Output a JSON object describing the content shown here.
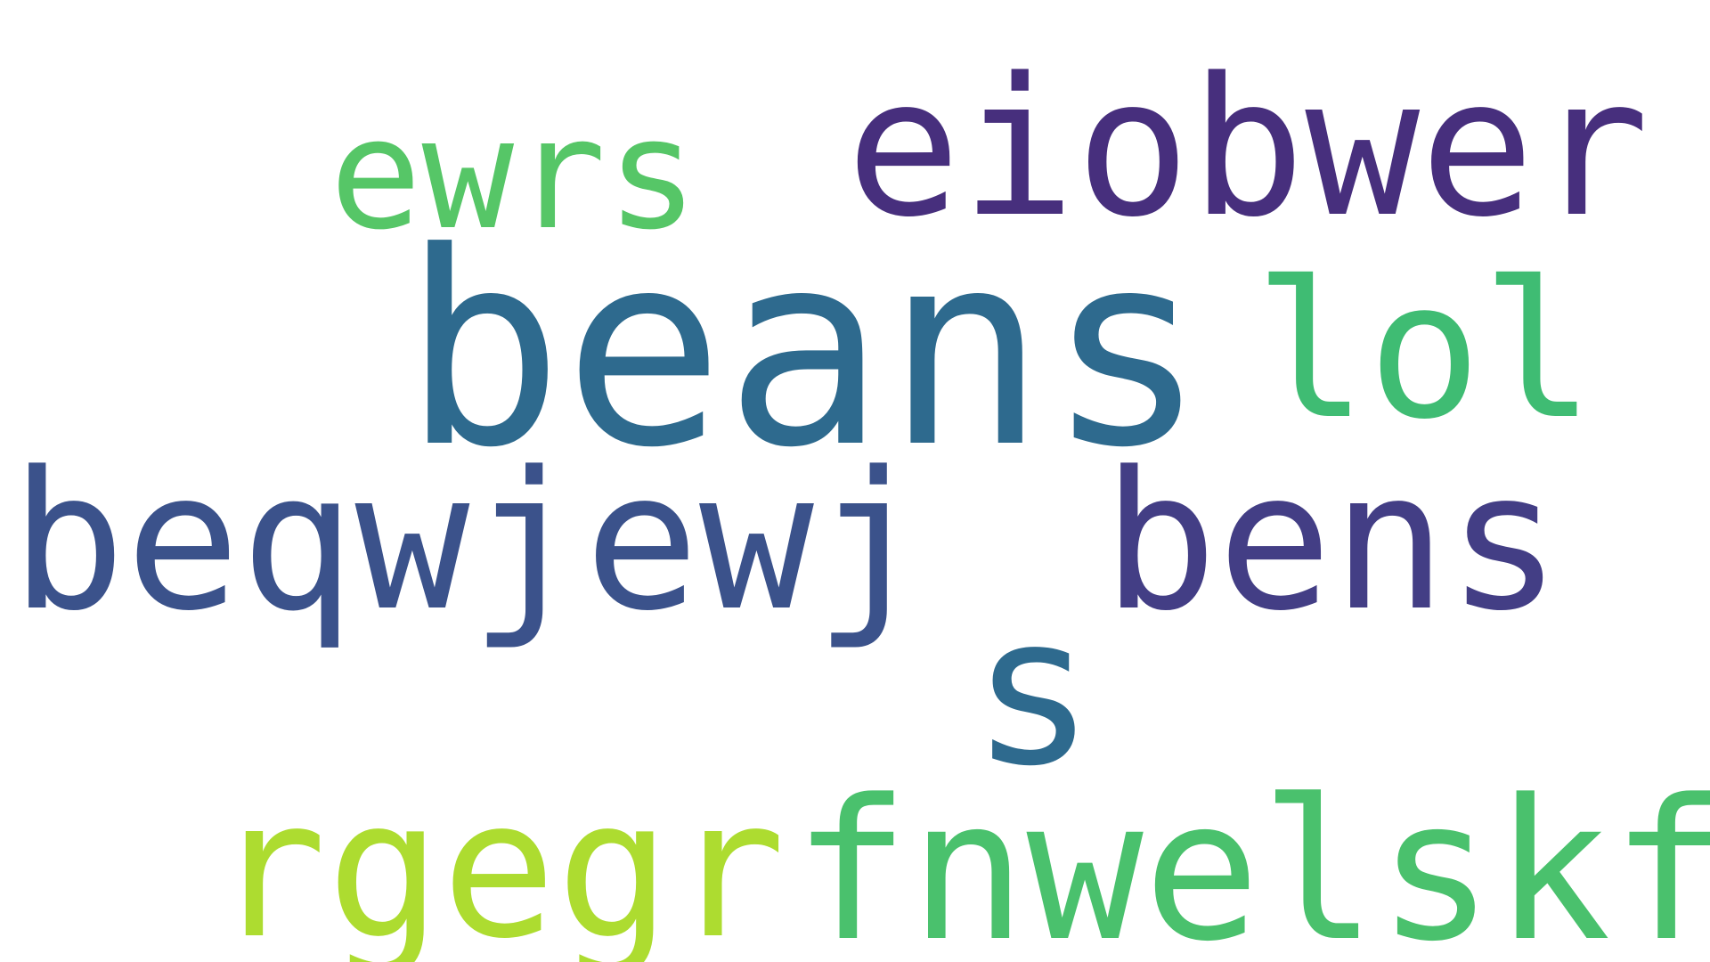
{
  "words": [
    {
      "text": "beans",
      "color": "#2e6a8e"
    },
    {
      "text": "lol",
      "color": "#3fbc73"
    },
    {
      "text": "eiobwer",
      "color": "#472f7d"
    },
    {
      "text": "ewrs",
      "color": "#56c667"
    },
    {
      "text": "beqwjewj",
      "color": "#3b528b"
    },
    {
      "text": "bens",
      "color": "#433e85"
    },
    {
      "text": "s",
      "color": "#2e6a8e"
    },
    {
      "text": "rgegr",
      "color": "#addc30"
    },
    {
      "text": "fnwelskf",
      "color": "#4ac16d"
    }
  ]
}
